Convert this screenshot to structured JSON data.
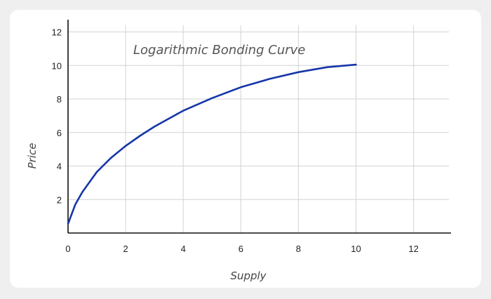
{
  "chart_data": {
    "type": "line",
    "title": "Logarithmic Bonding Curve",
    "xlabel": "Supply",
    "ylabel": "Price",
    "xlim": [
      0,
      13.3
    ],
    "ylim": [
      0,
      12.4
    ],
    "xticks": [
      0,
      2,
      4,
      6,
      8,
      10,
      12
    ],
    "yticks": [
      2,
      4,
      6,
      8,
      10,
      12
    ],
    "grid": true,
    "series": [
      {
        "color": "#1536a8",
        "x": [
          0,
          0.25,
          0.5,
          1,
          1.5,
          2,
          2.5,
          3,
          4,
          5,
          6,
          7,
          8,
          9,
          10
        ],
        "y": [
          0.55,
          1.7,
          2.45,
          3.65,
          4.5,
          5.2,
          5.8,
          6.35,
          7.3,
          8.05,
          8.7,
          9.2,
          9.6,
          9.9,
          10.05
        ]
      }
    ]
  }
}
